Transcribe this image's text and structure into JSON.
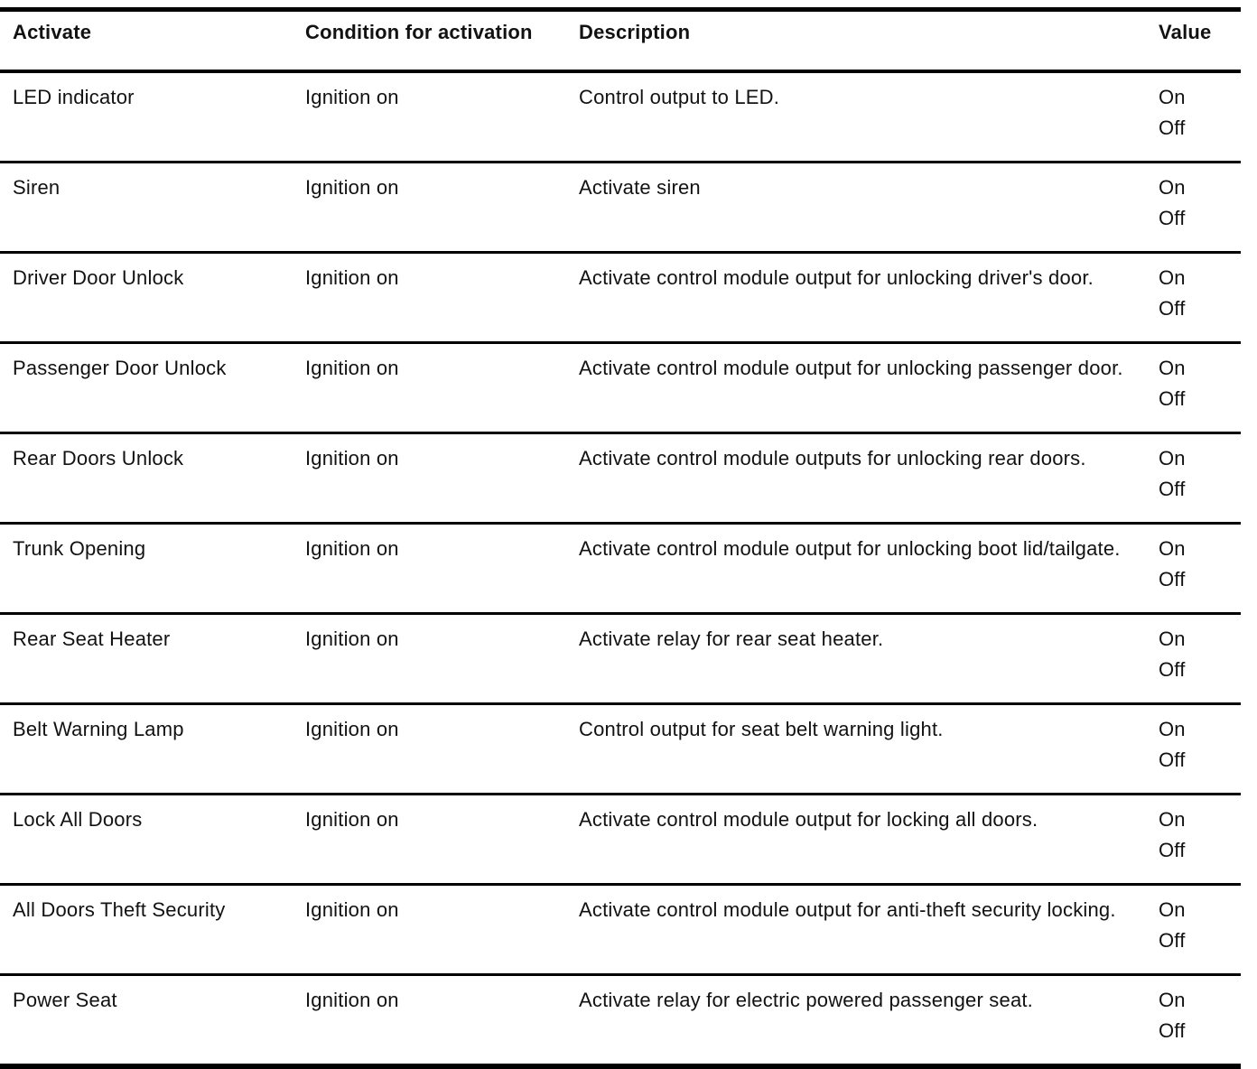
{
  "colors": {
    "background": "#ffffff",
    "text": "#121212",
    "rule": "#000000"
  },
  "table": {
    "columns": {
      "activate": "Activate",
      "condition": "Condition for activation",
      "description": "Description",
      "value": "Value"
    },
    "rows": [
      {
        "activate": "LED indicator",
        "condition": "Ignition on",
        "description": "Control output to LED.",
        "values": [
          "On",
          "Off"
        ]
      },
      {
        "activate": "Siren",
        "condition": "Ignition on",
        "description": "Activate siren",
        "values": [
          "On",
          "Off"
        ]
      },
      {
        "activate": "Driver Door Unlock",
        "condition": "Ignition on",
        "description": "Activate control module output for unlocking driver's door.",
        "values": [
          "On",
          "Off"
        ]
      },
      {
        "activate": "Passenger Door Unlock",
        "condition": "Ignition on",
        "description": "Activate control module output for unlocking passenger door.",
        "values": [
          "On",
          "Off"
        ]
      },
      {
        "activate": "Rear Doors Unlock",
        "condition": "Ignition on",
        "description": "Activate control module outputs for unlocking rear doors.",
        "values": [
          "On",
          "Off"
        ]
      },
      {
        "activate": "Trunk Opening",
        "condition": "Ignition on",
        "description": "Activate control module output for unlocking boot lid/tailgate.",
        "values": [
          "On",
          "Off"
        ]
      },
      {
        "activate": "Rear Seat Heater",
        "condition": "Ignition on",
        "description": "Activate relay for rear seat heater.",
        "values": [
          "On",
          "Off"
        ]
      },
      {
        "activate": "Belt Warning Lamp",
        "condition": "Ignition on",
        "description": "Control output for seat belt warning light.",
        "values": [
          "On",
          "Off"
        ]
      },
      {
        "activate": "Lock All Doors",
        "condition": "Ignition on",
        "description": "Activate control module output for locking all doors.",
        "values": [
          "On",
          "Off"
        ]
      },
      {
        "activate": "All Doors Theft Security",
        "condition": "Ignition on",
        "description": "Activate control module output for anti-theft security locking.",
        "values": [
          "On",
          "Off"
        ]
      },
      {
        "activate": "Power Seat",
        "condition": "Ignition on",
        "description": "Activate relay for electric powered passenger seat.",
        "values": [
          "On",
          "Off"
        ]
      }
    ]
  }
}
